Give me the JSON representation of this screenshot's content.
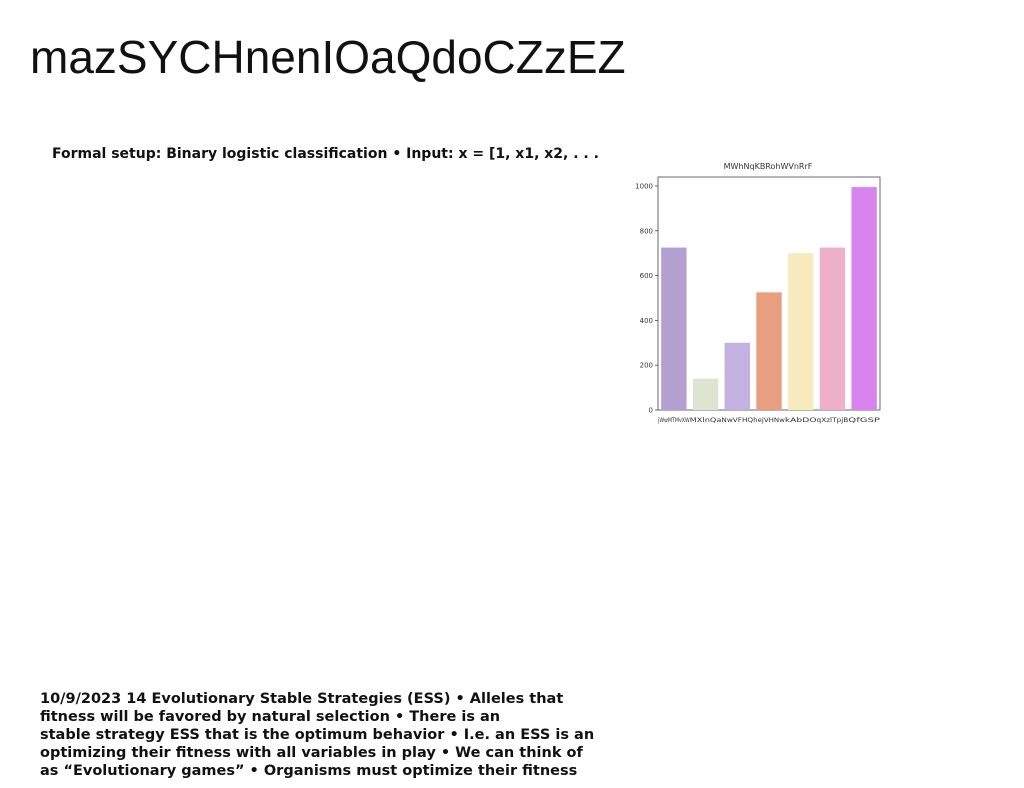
{
  "title": "mazSYCHnenIOaQdoCZzEZ",
  "subtitle": "Formal setup: Binary logistic classification • Input: x = [1, x1, x2, . . .",
  "footer_lines": [
    "10/9/2023 14 Evolutionary Stable Strategies (ESS) • Alleles that",
    "fitness will be favored by natural selection • There is an",
    "stable strategy ESS that is the optimum behavior • I.e. an ESS is an",
    "optimizing their fitness with all variables in play • We can think of",
    "as “Evolutionary games” • Organisms must optimize their fitness"
  ],
  "chart_data": {
    "type": "bar",
    "title": "MWhNqKBRohWVnRrF",
    "categories": [
      "jWwMTMvXW",
      "MXlnQa",
      "NwVFHQ",
      "hejVHNw",
      "kAbDO",
      "qXzlTpjB",
      "QfGSP"
    ],
    "values": [
      725,
      140,
      300,
      525,
      700,
      725,
      995
    ],
    "colors": [
      "#b39fd0",
      "#dde5d0",
      "#c3b1e1",
      "#e99e80",
      "#f7ebbd",
      "#eeb0c8",
      "#d883ee"
    ],
    "ylim": [
      0,
      1040
    ],
    "yticks": [
      0,
      200,
      400,
      600,
      800,
      1000
    ]
  }
}
